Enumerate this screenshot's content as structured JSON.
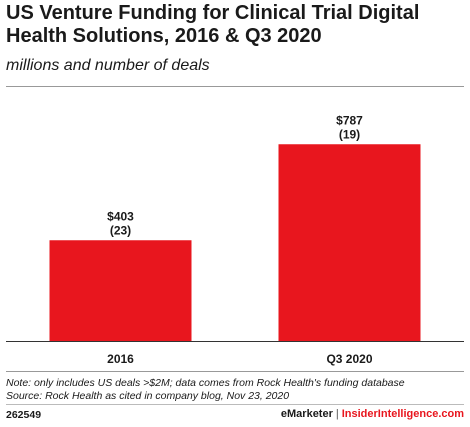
{
  "chart_data": {
    "type": "bar",
    "title": "US Venture Funding for Clinical Trial Digital Health Solutions, 2016 & Q3 2020",
    "subtitle": "millions and number of deals",
    "categories": [
      "2016",
      "Q3 2020"
    ],
    "values": [
      403,
      787
    ],
    "deal_counts": [
      23,
      19
    ],
    "value_labels": [
      "$403",
      "$787"
    ],
    "count_labels": [
      "(23)",
      "(19)"
    ],
    "xlabel": "",
    "ylabel": "",
    "ylim": [
      0,
      1000
    ],
    "grid": false,
    "legend": "none",
    "bar_color": "#e8161e"
  },
  "notes": {
    "note": "Note: only includes US deals >$2M; data comes from Rock Health's funding database",
    "source": "Source: Rock Health as cited in company blog, Nov 23, 2020"
  },
  "footer": {
    "id": "262549",
    "brand_left": "eMarketer",
    "brand_sep": "|",
    "brand_right": "InsiderIntelligence.com",
    "brand_right_color": "#e8161e"
  }
}
